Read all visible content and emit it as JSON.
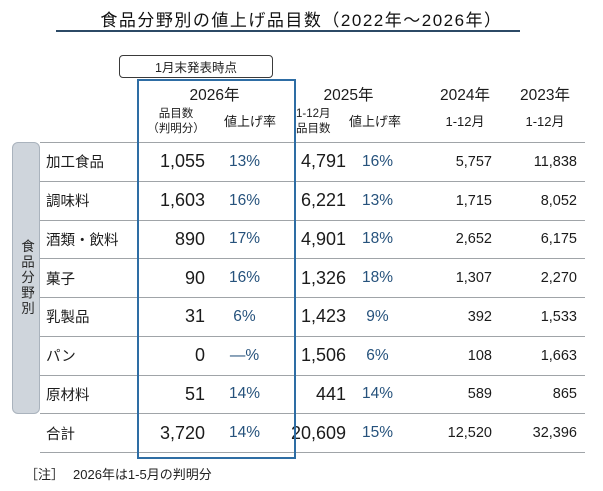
{
  "title": "食品分野別の値上げ品目数（2022年～2026年）",
  "callout": "1月末発表時点",
  "side_label": "食品分野別",
  "note_prefix": "［注］",
  "note_text": "2026年は1-5月の判明分",
  "colors": {
    "accent_border_blue": "#2e6da4",
    "percent_navy": "#26527c",
    "grid_gray": "#a0a4a8",
    "side_bar_fill": "#cfd5dc"
  },
  "header": {
    "y2026": "2026年",
    "y2025": "2025年",
    "y2024": "2024年",
    "y2023": "2023年",
    "sub_2026_count_l1": "品目数",
    "sub_2026_count_l2": "（判明分）",
    "sub_2026_rate": "値上げ率",
    "sub_2025_count_l1": "1-12月",
    "sub_2025_count_l2": "品目数",
    "sub_2025_rate": "値上げ率",
    "sub_2024": "1-12月",
    "sub_2023": "1-12月"
  },
  "rows": [
    {
      "label": "加工食品",
      "c2026": "1,055",
      "r2026": "13%",
      "c2025": "4,791",
      "r2025": "16%",
      "c2024": "5,757",
      "c2023": "11,838"
    },
    {
      "label": "調味料",
      "c2026": "1,603",
      "r2026": "16%",
      "c2025": "6,221",
      "r2025": "13%",
      "c2024": "1,715",
      "c2023": "8,052"
    },
    {
      "label": "酒類・飲料",
      "c2026": "890",
      "r2026": "17%",
      "c2025": "4,901",
      "r2025": "18%",
      "c2024": "2,652",
      "c2023": "6,175"
    },
    {
      "label": "菓子",
      "c2026": "90",
      "r2026": "16%",
      "c2025": "1,326",
      "r2025": "18%",
      "c2024": "1,307",
      "c2023": "2,270"
    },
    {
      "label": "乳製品",
      "c2026": "31",
      "r2026": "6%",
      "c2025": "1,423",
      "r2025": "9%",
      "c2024": "392",
      "c2023": "1,533"
    },
    {
      "label": "パン",
      "c2026": "0",
      "r2026": "—%",
      "c2025": "1,506",
      "r2025": "6%",
      "c2024": "108",
      "c2023": "1,663"
    },
    {
      "label": "原材料",
      "c2026": "51",
      "r2026": "14%",
      "c2025": "441",
      "r2025": "14%",
      "c2024": "589",
      "c2023": "865"
    },
    {
      "label": "合計",
      "c2026": "3,720",
      "r2026": "14%",
      "c2025": "20,609",
      "r2025": "15%",
      "c2024": "12,520",
      "c2023": "32,396"
    }
  ],
  "chart_data": {
    "type": "table",
    "title": "食品分野別の値上げ品目数（2022年～2026年）",
    "row_group_label": "食品分野別",
    "columns": [
      "食品分野",
      "2026年 品目数（判明分）",
      "2026年 値上げ率",
      "2025年 1-12月品目数",
      "2025年 値上げ率",
      "2024年 1-12月",
      "2023年 1-12月"
    ],
    "rows": [
      [
        "加工食品",
        1055,
        "13%",
        4791,
        "16%",
        5757,
        11838
      ],
      [
        "調味料",
        1603,
        "16%",
        6221,
        "13%",
        1715,
        8052
      ],
      [
        "酒類・飲料",
        890,
        "17%",
        4901,
        "18%",
        2652,
        6175
      ],
      [
        "菓子",
        90,
        "16%",
        1326,
        "18%",
        1307,
        2270
      ],
      [
        "乳製品",
        31,
        "6%",
        1423,
        "9%",
        392,
        1533
      ],
      [
        "パン",
        0,
        "—%",
        1506,
        "6%",
        108,
        1663
      ],
      [
        "原材料",
        51,
        "14%",
        441,
        "14%",
        589,
        865
      ],
      [
        "合計",
        3720,
        "14%",
        20609,
        "15%",
        12520,
        32396
      ]
    ],
    "annotations": [
      "1月末発表時点",
      "［注］2026年は1-5月の判明分"
    ],
    "highlight": "2026年の2列が青枠で強調されている"
  }
}
